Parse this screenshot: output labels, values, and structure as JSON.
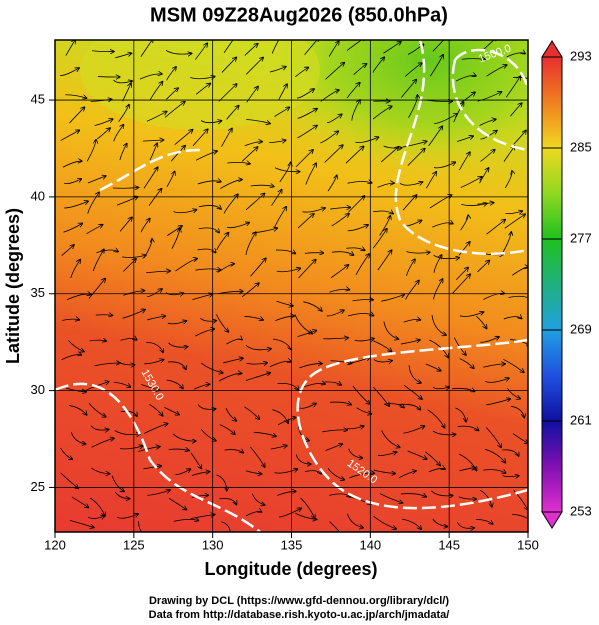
{
  "title": "MSM 09Z28Aug2026 (850.0hPa)",
  "map": {
    "x_label": "Longitude (degrees)",
    "y_label": "Latitude  (degrees)",
    "xlim": [
      120,
      150
    ],
    "ylim": [
      22.7,
      48.1
    ],
    "xticks": [
      120,
      125,
      130,
      135,
      140,
      145,
      150
    ],
    "yticks": [
      25,
      30,
      35,
      40,
      45
    ],
    "contour_labels": [
      "1500.0",
      "1530.0",
      "1520.0"
    ]
  },
  "colorbar": {
    "lim": [
      253,
      293
    ],
    "ticks": [
      293,
      285,
      277,
      269,
      261,
      253
    ]
  },
  "credits": [
    "Drawing by DCL (https://www.gfd-dennou.org/library/dcl/)",
    "Data from http://database.rish.kyoto-u.ac.jp/arch/jmadata/"
  ]
}
